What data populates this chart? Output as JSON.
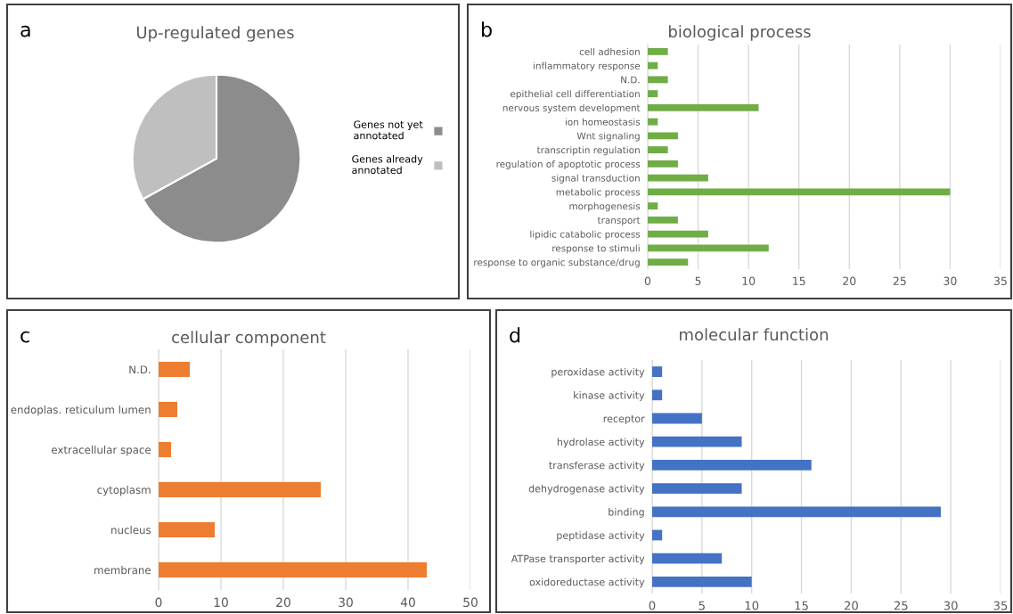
{
  "chart_data": [
    {
      "type": "pie",
      "title": "Up-regulated genes",
      "annotations": [
        "a"
      ],
      "categories": [
        "Genes not yet annotated",
        "Genes already annotated"
      ],
      "values": [
        67,
        33
      ],
      "colors": [
        "#8c8c8c",
        "#bfbfbf"
      ],
      "legend": "right"
    },
    {
      "type": "bar",
      "orientation": "horizontal",
      "title": "biological process",
      "annotations": [
        "b"
      ],
      "categories": [
        "cell adhesion",
        "inflammatory response",
        "N.D.",
        "epithelial cell differentiation",
        "nervous system development",
        "ion homeostasis",
        "Wnt signaling",
        "transcriptin regulation",
        "regulation of apoptotic process",
        "signal transduction",
        "metabolic process",
        "morphogenesis",
        "transport",
        "lipidic catabolic process",
        "response to stimuli",
        "response to organic substance/drug"
      ],
      "values": [
        2,
        1,
        2,
        1,
        11,
        1,
        3,
        2,
        3,
        6,
        30,
        1,
        3,
        6,
        12,
        4
      ],
      "color": "#70ad47",
      "xlim": [
        0,
        35
      ],
      "xticks": [
        0,
        5,
        10,
        15,
        20,
        25,
        30,
        35
      ],
      "grid": "x"
    },
    {
      "type": "bar",
      "orientation": "horizontal",
      "title": "cellular component",
      "annotations": [
        "c"
      ],
      "categories": [
        "N.D.",
        "endoplas. reticulum lumen",
        "extracellular space",
        "cytoplasm",
        "nucleus",
        "membrane"
      ],
      "values": [
        5,
        3,
        2,
        26,
        9,
        43
      ],
      "color": "#ed7d31",
      "xlim": [
        0,
        50
      ],
      "xticks": [
        0,
        10,
        20,
        30,
        40,
        50
      ],
      "grid": "x"
    },
    {
      "type": "bar",
      "orientation": "horizontal",
      "title": "molecular function",
      "annotations": [
        "d"
      ],
      "categories": [
        "peroxidase activity",
        "kinase activity",
        "receptor",
        "hydrolase activity",
        "transferase activity",
        "dehydrogenase activity",
        "binding",
        "peptidase activity",
        "ATPase transporter activity",
        "oxidoreductase activity"
      ],
      "values": [
        1,
        1,
        5,
        9,
        16,
        9,
        29,
        1,
        7,
        10
      ],
      "color": "#4472c4",
      "xlim": [
        0,
        35
      ],
      "xticks": [
        0,
        5,
        10,
        15,
        20,
        25,
        30,
        35
      ],
      "grid": "x"
    }
  ]
}
